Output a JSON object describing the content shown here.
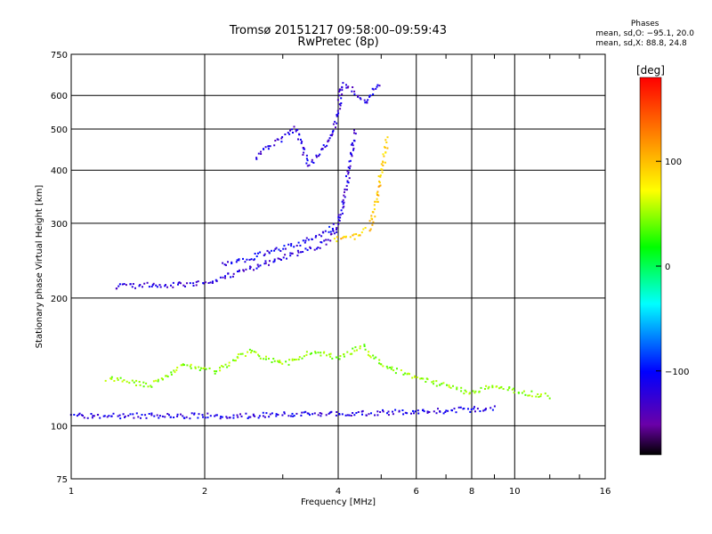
{
  "header": {
    "title": "Tromsø 20151217 09:58:00–09:59:43",
    "subtitle": "RwPretec (8p)"
  },
  "phases_box": {
    "heading": "Phases",
    "line_o": "mean, sd,O: −95.1, 20.0",
    "line_x": "mean, sd,X:  88.8, 24.8"
  },
  "colorbar": {
    "unit": "[deg]",
    "range": [
      -180,
      180
    ],
    "ticks": [
      {
        "value": 100,
        "label": "100"
      },
      {
        "value": 0,
        "label": "0"
      },
      {
        "value": -100,
        "label": "−100"
      }
    ]
  },
  "chart_data": {
    "type": "scatter",
    "xlabel": "Frequency [MHz]",
    "ylabel": "Stationary phase Virtual Height [km]",
    "xscale": "log",
    "yscale": "log",
    "xlim": [
      1,
      16
    ],
    "ylim": [
      75,
      750
    ],
    "xticks": [
      1,
      2,
      4,
      6,
      8,
      10,
      16
    ],
    "xtick_labels": [
      "1",
      "2",
      "4",
      "6",
      "8",
      "10",
      "16"
    ],
    "yticks": [
      75,
      100,
      200,
      300,
      400,
      500,
      600,
      750
    ],
    "ytick_labels": [
      "75",
      "100",
      "200",
      "300",
      "400",
      "500",
      "600",
      "750"
    ],
    "grid": true,
    "color_variable": "phase [deg]",
    "traces": [
      {
        "desc": "F-layer O trace",
        "phase": -120,
        "points": [
          [
            1.25,
            214
          ],
          [
            1.4,
            215
          ],
          [
            1.55,
            216
          ],
          [
            1.7,
            216
          ],
          [
            1.85,
            217
          ],
          [
            2.0,
            218
          ],
          [
            2.2,
            225
          ],
          [
            2.4,
            232
          ],
          [
            2.6,
            238
          ],
          [
            2.8,
            244
          ],
          [
            3.0,
            250
          ],
          [
            3.2,
            255
          ],
          [
            3.4,
            260
          ],
          [
            3.6,
            267
          ],
          [
            3.8,
            275
          ],
          [
            3.95,
            290
          ],
          [
            4.05,
            320
          ],
          [
            4.15,
            370
          ],
          [
            4.25,
            430
          ],
          [
            4.35,
            500
          ]
        ]
      },
      {
        "desc": "F-layer O upper branch",
        "phase": -110,
        "points": [
          [
            2.2,
            240
          ],
          [
            2.4,
            245
          ],
          [
            2.6,
            252
          ],
          [
            2.8,
            258
          ],
          [
            3.0,
            263
          ],
          [
            3.2,
            268
          ],
          [
            3.4,
            275
          ],
          [
            3.6,
            283
          ],
          [
            3.8,
            290
          ],
          [
            3.95,
            300
          ]
        ]
      },
      {
        "desc": "F-layer O high-range echoes",
        "phase": -120,
        "points": [
          [
            2.6,
            430
          ],
          [
            2.8,
            460
          ],
          [
            3.0,
            480
          ],
          [
            3.2,
            505
          ],
          [
            3.4,
            415
          ],
          [
            3.6,
            440
          ],
          [
            3.8,
            470
          ],
          [
            3.9,
            510
          ],
          [
            4.0,
            560
          ],
          [
            4.05,
            640
          ],
          [
            4.3,
            620
          ],
          [
            4.6,
            580
          ],
          [
            4.8,
            620
          ],
          [
            4.95,
            650
          ]
        ]
      },
      {
        "desc": "F-layer X trace",
        "phase": 95,
        "points": [
          [
            3.9,
            275
          ],
          [
            4.1,
            277
          ],
          [
            4.3,
            280
          ],
          [
            4.5,
            285
          ],
          [
            4.7,
            295
          ],
          [
            4.8,
            320
          ],
          [
            4.9,
            360
          ],
          [
            5.0,
            400
          ],
          [
            5.1,
            450
          ],
          [
            5.15,
            480
          ]
        ]
      },
      {
        "desc": "E/Es layer trace",
        "phase": -115,
        "points": [
          [
            1.0,
            106
          ],
          [
            1.5,
            106
          ],
          [
            2.0,
            106
          ],
          [
            2.5,
            106
          ],
          [
            3.0,
            107
          ],
          [
            3.5,
            107
          ],
          [
            4.0,
            107
          ],
          [
            5.0,
            108
          ],
          [
            6.0,
            108
          ],
          [
            7.0,
            109
          ],
          [
            8.0,
            110
          ],
          [
            9.0,
            111
          ]
        ]
      },
      {
        "desc": "Scattered echoes 110-180 km",
        "phase": 40,
        "points": [
          [
            1.2,
            130
          ],
          [
            1.5,
            125
          ],
          [
            1.8,
            140
          ],
          [
            2.1,
            135
          ],
          [
            2.5,
            150
          ],
          [
            3.0,
            140
          ],
          [
            3.5,
            150
          ],
          [
            4.0,
            145
          ],
          [
            4.5,
            155
          ],
          [
            5.0,
            140
          ],
          [
            6.0,
            130
          ],
          [
            7.0,
            125
          ],
          [
            8.0,
            120
          ],
          [
            9.0,
            125
          ],
          [
            10.5,
            120
          ],
          [
            12.0,
            118
          ]
        ]
      }
    ]
  }
}
